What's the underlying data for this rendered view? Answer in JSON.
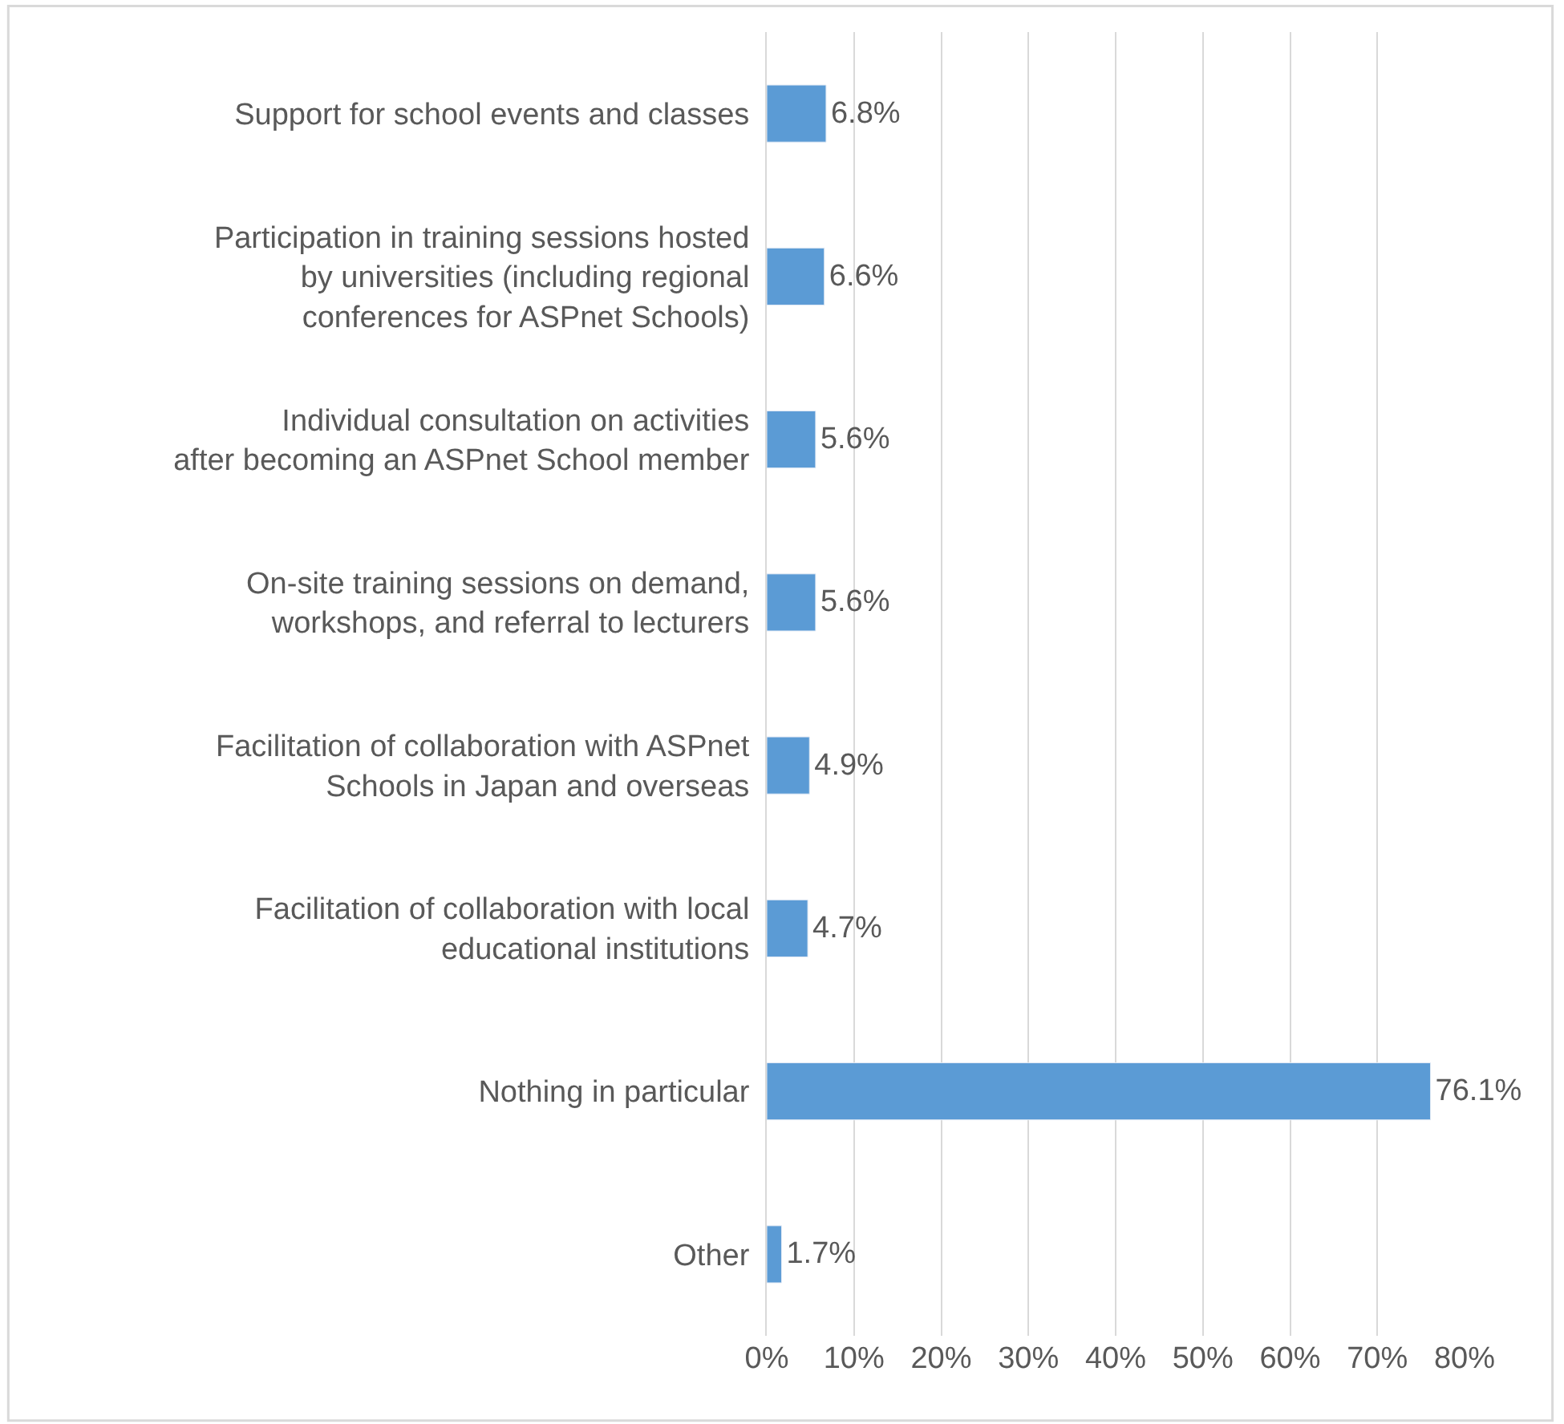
{
  "chart_data": {
    "type": "bar",
    "orientation": "horizontal",
    "categories": [
      "Support for school events and classes",
      "Participation in training sessions hosted by universities (including regional conferences for ASPnet Schools)",
      "Individual consultation on activities after becoming an ASPnet School member",
      "On-site training sessions on demand, workshops, and referral to lecturers",
      "Facilitation of collaboration with ASPnet Schools in Japan and overseas",
      "Facilitation of collaboration with local educational institutions",
      "Nothing in particular",
      "Other"
    ],
    "values": [
      6.8,
      6.6,
      5.6,
      5.6,
      4.9,
      4.7,
      76.1,
      1.7
    ],
    "value_labels": [
      "6.8%",
      "6.6%",
      "5.6%",
      "5.6%",
      "4.9%",
      "4.7%",
      "76.1%",
      "1.7%"
    ],
    "color": "#5b9bd5",
    "xlim": [
      0,
      80
    ],
    "xticks": [
      {
        "value": 0,
        "label": "0%"
      },
      {
        "value": 10,
        "label": "10%"
      },
      {
        "value": 20,
        "label": "20%"
      },
      {
        "value": 30,
        "label": "30%"
      },
      {
        "value": 40,
        "label": "40%"
      },
      {
        "value": 50,
        "label": "50%"
      },
      {
        "value": 60,
        "label": "60%"
      },
      {
        "value": 70,
        "label": "70%"
      },
      {
        "value": 80,
        "label": "80%"
      }
    ],
    "grid": "x"
  }
}
